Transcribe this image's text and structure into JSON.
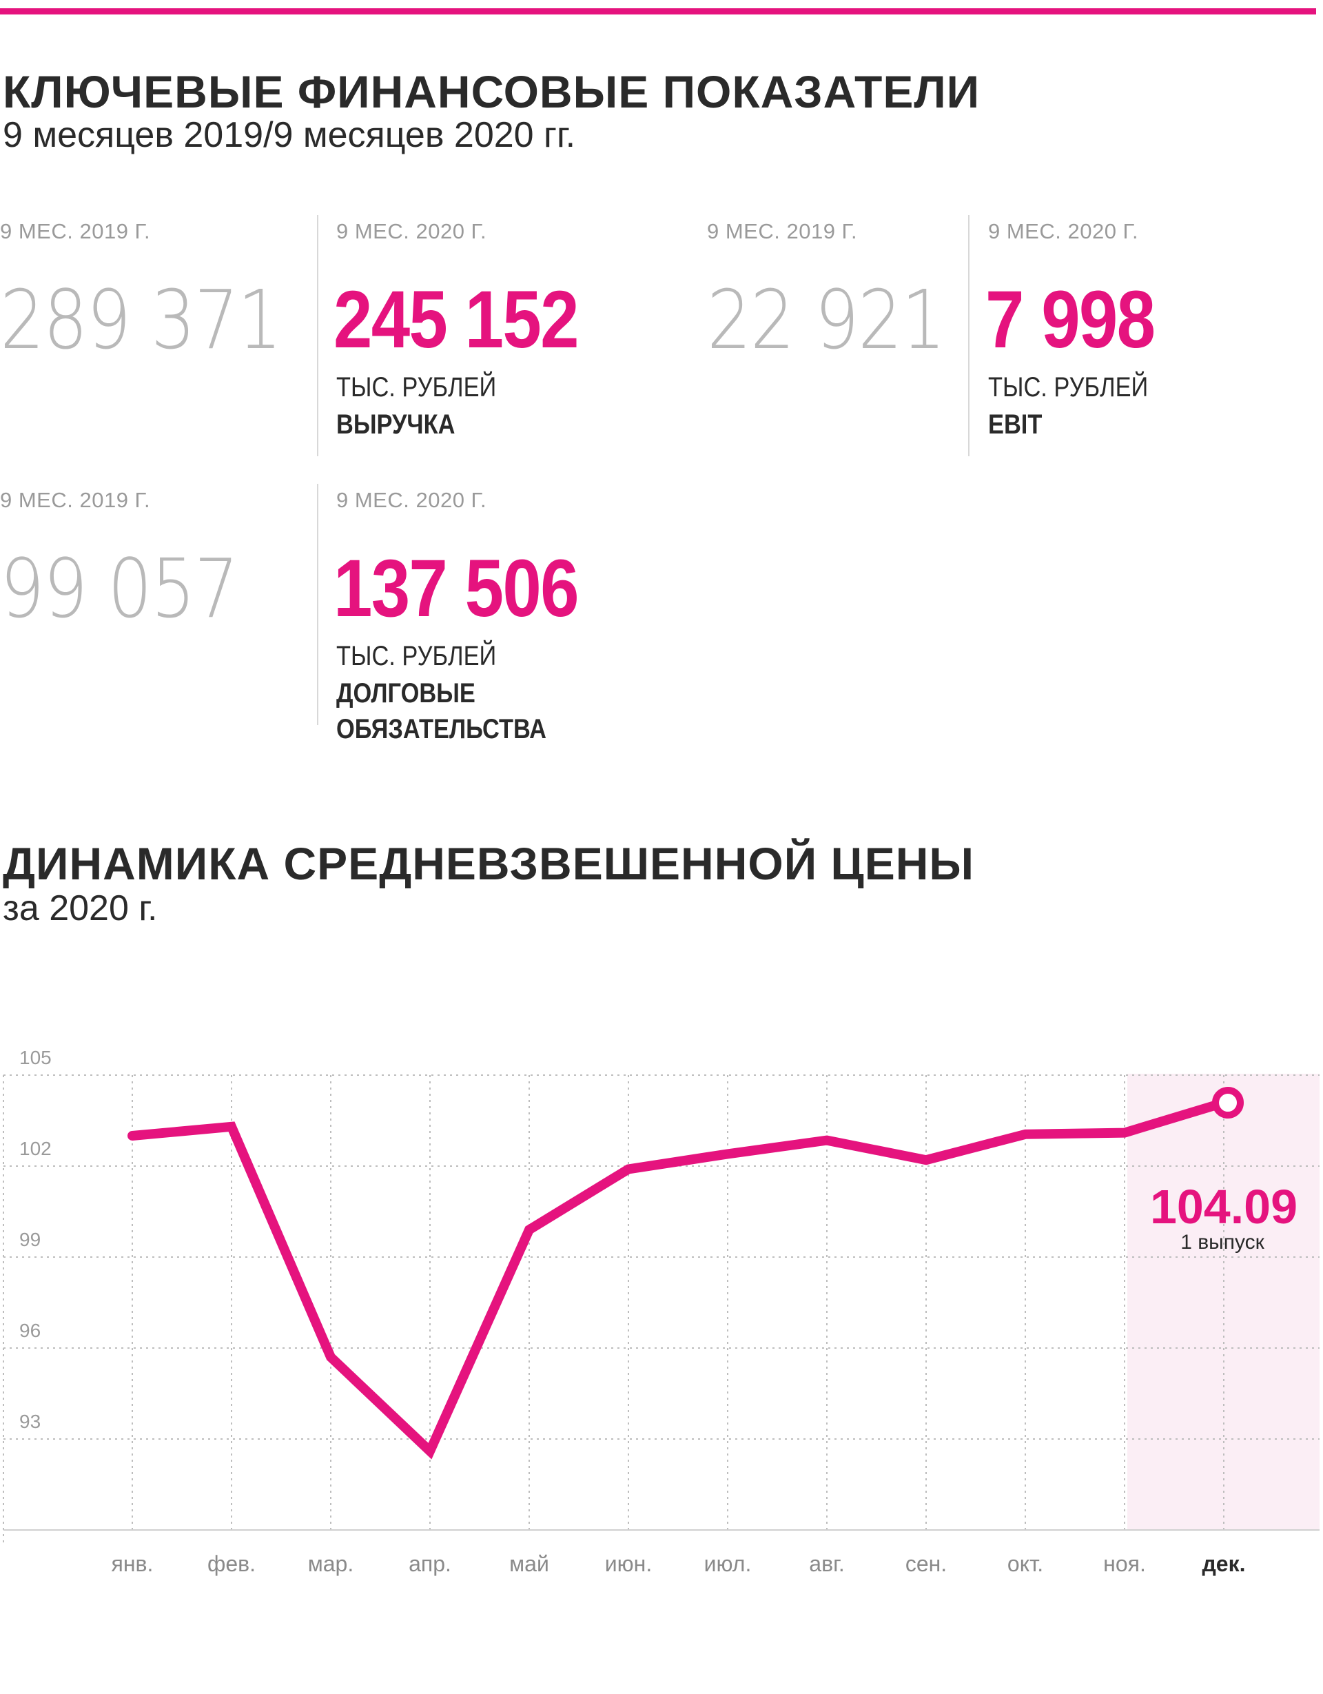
{
  "colors": {
    "accent": "#e5137e",
    "text": "#2a2a2a",
    "muted": "#9a9a9a",
    "old_value": "#b9b9b9",
    "highlight": "#fbeef5"
  },
  "section1": {
    "title": "КЛЮЧЕВЫЕ ФИНАНСОВЫЕ ПОКАЗАТЕЛИ",
    "subtitle": "9 месяцев 2019/9 месяцев 2020 гг."
  },
  "kpis": [
    {
      "prev_label": "9 МЕС. 2019 Г.",
      "prev_value": "289 371",
      "cur_label": "9 МЕС. 2020 Г.",
      "cur_value": "245 152",
      "unit": "ТЫС. РУБЛЕЙ",
      "name_lines": [
        "ВЫРУЧКА"
      ]
    },
    {
      "prev_label": "9 МЕС. 2019 Г.",
      "prev_value": "22 921",
      "cur_label": "9 МЕС. 2020 Г.",
      "cur_value": "7 998",
      "unit": "ТЫС. РУБЛЕЙ",
      "name_lines": [
        "EBIT"
      ]
    },
    {
      "prev_label": "9 МЕС. 2019 Г.",
      "prev_value": "99 057",
      "cur_label": "9 МЕС. 2020 Г.",
      "cur_value": "137 506",
      "unit": "ТЫС. РУБЛЕЙ",
      "name_lines": [
        "ДОЛГОВЫЕ",
        "ОБЯЗАТЕЛЬСТВА"
      ]
    }
  ],
  "section2": {
    "title": "ДИНАМИКА СРЕДНЕВЗВЕШЕННОЙ ЦЕНЫ",
    "subtitle": "за 2020 г."
  },
  "chart_data": {
    "type": "line",
    "title": "ДИНАМИКА СРЕДНЕВЗВЕШЕННОЙ ЦЕНЫ",
    "subtitle": "за 2020 г.",
    "categories": [
      "янв.",
      "фев.",
      "мар.",
      "апр.",
      "май",
      "июн.",
      "июл.",
      "авг.",
      "сен.",
      "окт.",
      "ноя.",
      "дек."
    ],
    "values": [
      103.0,
      103.3,
      95.7,
      92.6,
      99.9,
      101.9,
      102.4,
      102.85,
      102.2,
      103.05,
      103.1,
      104.09
    ],
    "yticks": [
      105,
      102,
      99,
      96,
      93
    ],
    "ylim": [
      90,
      105
    ],
    "grid": true,
    "highlight_category": "дек.",
    "end_label": {
      "value": "104.09",
      "note": "1 выпуск"
    }
  }
}
